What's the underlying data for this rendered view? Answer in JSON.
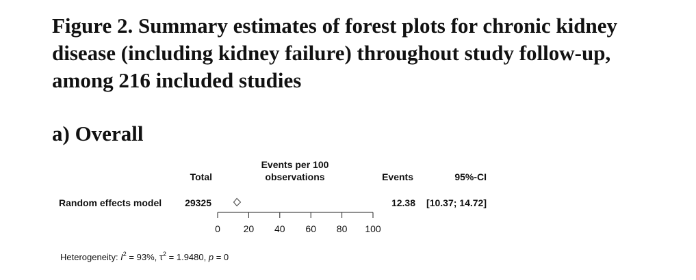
{
  "figure_title": "Figure 2. Summary estimates of forest plots for chronic kidney disease (including kidney failure) throughout study follow-up, among 216 included studies",
  "panel_title": "a) Overall",
  "chart_data": {
    "type": "forest",
    "columns": {
      "total": "Total",
      "effect_line1": "Events per 100",
      "effect_line2": "observations",
      "events": "Events",
      "ci": "95%-CI"
    },
    "rows": [
      {
        "label": "Random effects model",
        "total": "29325",
        "estimate": 12.38,
        "ci_lower": 10.37,
        "ci_upper": 14.72,
        "events_text": "12.38",
        "ci_text": "[10.37; 14.72]",
        "marker": "diamond"
      }
    ],
    "xlim": [
      0,
      100
    ],
    "xticks": [
      0,
      20,
      40,
      60,
      80,
      100
    ],
    "heterogeneity": {
      "prefix": "Heterogeneity: ",
      "i2_symbol": "I",
      "i2_value": " = 93%, ",
      "tau2_symbol": "τ",
      "tau2_value": " = 1.9480, ",
      "p_symbol": "p",
      "p_value": " = 0"
    }
  }
}
